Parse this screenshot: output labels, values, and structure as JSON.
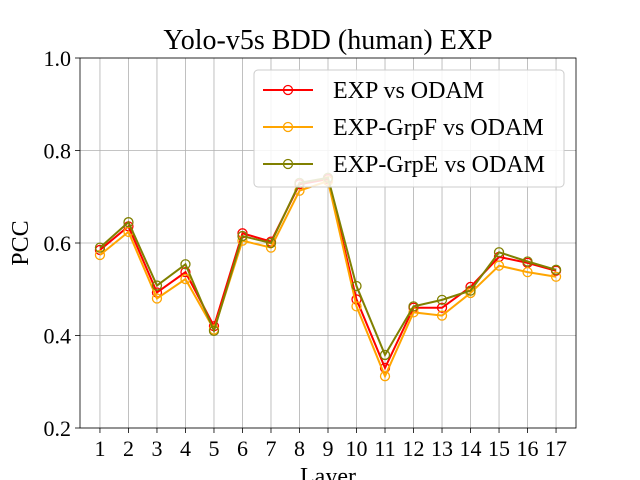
{
  "chart_data": {
    "type": "line",
    "title": "Yolo-v5s BDD (human) EXP",
    "xlabel": "Layer",
    "ylabel": "PCC",
    "x": [
      1,
      2,
      3,
      4,
      5,
      6,
      7,
      8,
      9,
      10,
      11,
      12,
      13,
      14,
      15,
      16,
      17
    ],
    "xlim": [
      0.3,
      17.7
    ],
    "ylim": [
      0.2,
      1.0
    ],
    "yticks": [
      "0.2",
      "0.4",
      "0.6",
      "0.8",
      "1.0"
    ],
    "xticks": [
      "1",
      "2",
      "3",
      "4",
      "5",
      "6",
      "7",
      "8",
      "9",
      "10",
      "11",
      "12",
      "13",
      "14",
      "15",
      "16",
      "17"
    ],
    "grid": true,
    "legend_position": "upper-right",
    "series": [
      {
        "name": "EXP vs ODAM",
        "color": "#ff0000",
        "values": [
          0.585,
          0.636,
          0.493,
          0.537,
          0.42,
          0.621,
          0.603,
          0.727,
          0.738,
          0.478,
          0.33,
          0.46,
          0.46,
          0.505,
          0.57,
          0.557,
          0.54
        ]
      },
      {
        "name": "EXP-GrpF vs ODAM",
        "color": "#ffa500",
        "values": [
          0.574,
          0.624,
          0.48,
          0.522,
          0.413,
          0.605,
          0.59,
          0.713,
          0.734,
          0.463,
          0.312,
          0.45,
          0.443,
          0.492,
          0.551,
          0.537,
          0.527
        ]
      },
      {
        "name": "EXP-GrpE vs ODAM",
        "color": "#808000",
        "values": [
          0.59,
          0.645,
          0.508,
          0.554,
          0.41,
          0.615,
          0.6,
          0.73,
          0.741,
          0.507,
          0.358,
          0.463,
          0.477,
          0.497,
          0.58,
          0.56,
          0.542
        ]
      }
    ]
  }
}
